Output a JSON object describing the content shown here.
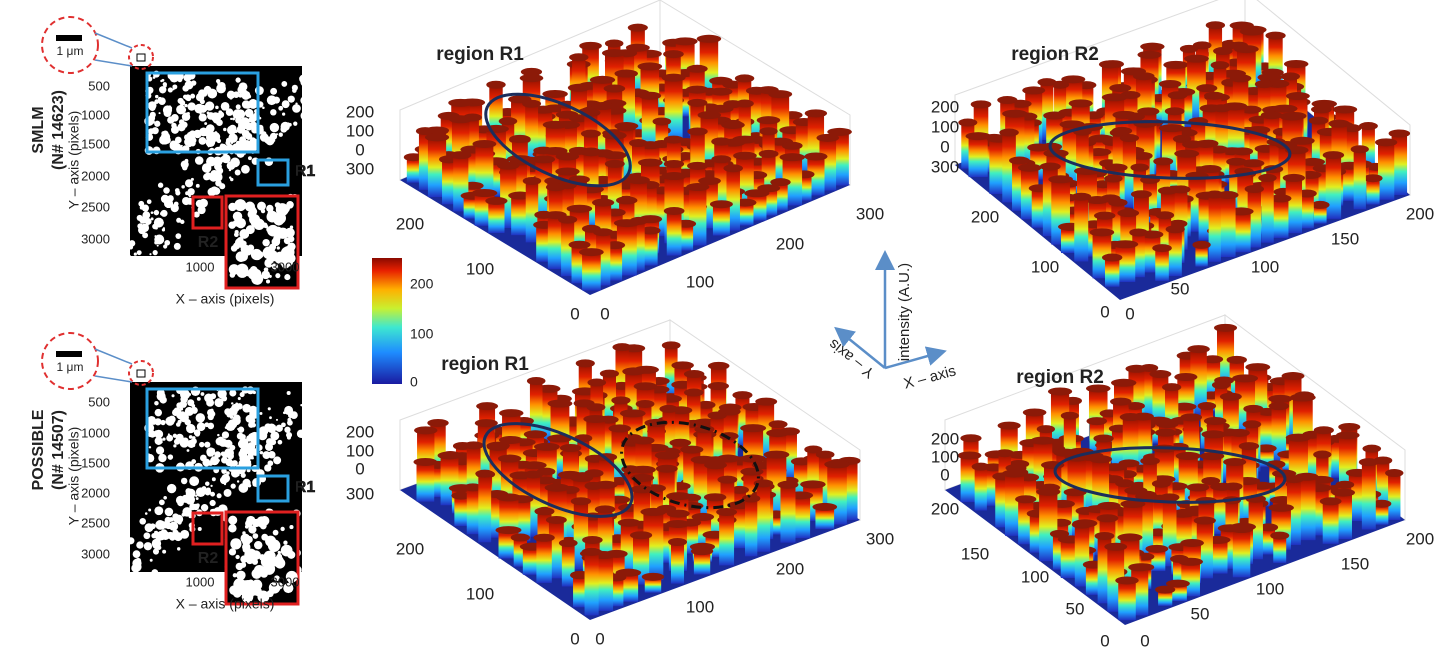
{
  "panels": [
    {
      "method": "SMLM",
      "count": "(N# 14623)",
      "scale_bar": "1 μm",
      "y_axis_label": "Y – axis (pixels)",
      "x_axis_label": "X – axis (pixels)",
      "yticks": [
        500,
        1000,
        1500,
        2000,
        2500,
        3000
      ],
      "xticks": [
        1000,
        3000
      ],
      "box_labels": [
        "R1",
        "R2"
      ],
      "plots": [
        {
          "title": "region R1",
          "zticks": [
            200,
            100,
            0
          ],
          "yticks": [
            300,
            200,
            100,
            0
          ],
          "xticks": [
            0,
            100,
            200,
            300
          ]
        },
        {
          "title": "region R2",
          "zticks": [
            200,
            100,
            0
          ],
          "yticks": [
            300,
            200,
            100,
            0
          ],
          "xticks": [
            0,
            50,
            100,
            150,
            200
          ]
        }
      ]
    },
    {
      "method": "POSSIBLE",
      "count": "(N# 14507)",
      "scale_bar": "1 μm",
      "y_axis_label": "Y – axis (pixels)",
      "x_axis_label": "X – axis (pixels)",
      "yticks": [
        500,
        1000,
        1500,
        2000,
        2500,
        3000
      ],
      "xticks": [
        1000,
        3000
      ],
      "box_labels": [
        "R1",
        "R2"
      ],
      "plots": [
        {
          "title": "region R1",
          "zticks": [
            200,
            100,
            0
          ],
          "yticks": [
            300,
            200,
            100,
            0
          ],
          "xticks": [
            0,
            100,
            200,
            300
          ]
        },
        {
          "title": "region R2",
          "zticks": [
            200,
            100,
            0
          ],
          "yticks": [
            200,
            150,
            100,
            50,
            0
          ],
          "xticks": [
            0,
            50,
            100,
            150,
            200
          ]
        }
      ]
    }
  ],
  "colorbar": {
    "ticks": [
      200,
      100,
      0
    ]
  },
  "axes_legend": {
    "z": "intensity (A.U.)",
    "y": "Y – axis",
    "x": "X – axis"
  }
}
